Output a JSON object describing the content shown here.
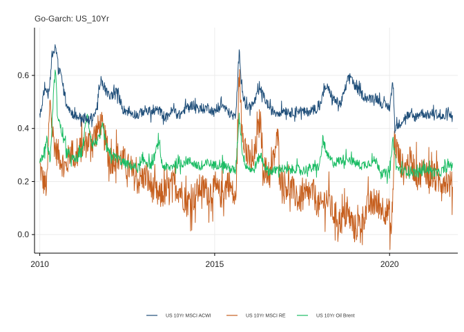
{
  "chart_data": {
    "type": "line",
    "title": "Go-Garch: US_10Yr",
    "xlabel": "",
    "ylabel": "",
    "xlim": [
      2009.85,
      2021.95
    ],
    "ylim": [
      -0.07,
      0.78
    ],
    "x_ticks": [
      2010,
      2015,
      2020
    ],
    "y_ticks": [
      0.0,
      0.2,
      0.4,
      0.6
    ],
    "x_tick_labels": [
      "2010",
      "2015",
      "2020"
    ],
    "y_tick_labels": [
      "0.0",
      "0.2",
      "0.4",
      "0.6"
    ],
    "grid": true,
    "legend_position": "bottom",
    "series": [
      {
        "name": "US_10Yr_MSCI_ACWI",
        "legend_label": "US  10Yr MSCI  ACWI",
        "color": "#1f4e79",
        "points": [
          [
            2010.0,
            0.44
          ],
          [
            2010.15,
            0.56
          ],
          [
            2010.25,
            0.52
          ],
          [
            2010.35,
            0.68
          ],
          [
            2010.45,
            0.71
          ],
          [
            2010.55,
            0.62
          ],
          [
            2010.65,
            0.58
          ],
          [
            2010.75,
            0.5
          ],
          [
            2010.9,
            0.46
          ],
          [
            2011.0,
            0.45
          ],
          [
            2011.2,
            0.44
          ],
          [
            2011.4,
            0.43
          ],
          [
            2011.6,
            0.46
          ],
          [
            2011.75,
            0.58
          ],
          [
            2011.85,
            0.55
          ],
          [
            2012.0,
            0.52
          ],
          [
            2012.2,
            0.54
          ],
          [
            2012.4,
            0.47
          ],
          [
            2012.6,
            0.46
          ],
          [
            2012.8,
            0.45
          ],
          [
            2013.0,
            0.47
          ],
          [
            2013.2,
            0.46
          ],
          [
            2013.4,
            0.47
          ],
          [
            2013.6,
            0.44
          ],
          [
            2013.8,
            0.47
          ],
          [
            2014.0,
            0.45
          ],
          [
            2014.2,
            0.48
          ],
          [
            2014.4,
            0.49
          ],
          [
            2014.6,
            0.47
          ],
          [
            2014.8,
            0.48
          ],
          [
            2015.0,
            0.46
          ],
          [
            2015.2,
            0.49
          ],
          [
            2015.4,
            0.46
          ],
          [
            2015.6,
            0.44
          ],
          [
            2015.7,
            0.69
          ],
          [
            2015.8,
            0.54
          ],
          [
            2015.9,
            0.48
          ],
          [
            2016.1,
            0.49
          ],
          [
            2016.3,
            0.55
          ],
          [
            2016.4,
            0.52
          ],
          [
            2016.6,
            0.47
          ],
          [
            2016.8,
            0.46
          ],
          [
            2017.0,
            0.47
          ],
          [
            2017.2,
            0.46
          ],
          [
            2017.4,
            0.47
          ],
          [
            2017.6,
            0.46
          ],
          [
            2017.8,
            0.47
          ],
          [
            2018.0,
            0.48
          ],
          [
            2018.1,
            0.53
          ],
          [
            2018.2,
            0.56
          ],
          [
            2018.4,
            0.51
          ],
          [
            2018.6,
            0.49
          ],
          [
            2018.8,
            0.58
          ],
          [
            2018.9,
            0.6
          ],
          [
            2019.0,
            0.56
          ],
          [
            2019.2,
            0.53
          ],
          [
            2019.4,
            0.51
          ],
          [
            2019.6,
            0.52
          ],
          [
            2019.8,
            0.49
          ],
          [
            2020.0,
            0.48
          ],
          [
            2020.1,
            0.58
          ],
          [
            2020.15,
            0.4
          ],
          [
            2020.3,
            0.42
          ],
          [
            2020.5,
            0.45
          ],
          [
            2020.7,
            0.44
          ],
          [
            2020.9,
            0.46
          ],
          [
            2021.1,
            0.45
          ],
          [
            2021.3,
            0.46
          ],
          [
            2021.5,
            0.44
          ],
          [
            2021.7,
            0.45
          ],
          [
            2021.8,
            0.45
          ]
        ]
      },
      {
        "name": "US_10Yr_MSCI_RE",
        "legend_label": "US  10Yr MSCI  RE",
        "color": "#c65f1e",
        "points": [
          [
            2010.0,
            0.26
          ],
          [
            2010.1,
            0.2
          ],
          [
            2010.2,
            0.18
          ],
          [
            2010.3,
            0.52
          ],
          [
            2010.35,
            0.4
          ],
          [
            2010.45,
            0.32
          ],
          [
            2010.55,
            0.3
          ],
          [
            2010.65,
            0.27
          ],
          [
            2010.75,
            0.25
          ],
          [
            2010.9,
            0.33
          ],
          [
            2011.0,
            0.28
          ],
          [
            2011.2,
            0.33
          ],
          [
            2011.4,
            0.35
          ],
          [
            2011.6,
            0.38
          ],
          [
            2011.75,
            0.42
          ],
          [
            2011.9,
            0.34
          ],
          [
            2012.0,
            0.27
          ],
          [
            2012.2,
            0.3
          ],
          [
            2012.4,
            0.28
          ],
          [
            2012.6,
            0.24
          ],
          [
            2012.8,
            0.2
          ],
          [
            2013.0,
            0.22
          ],
          [
            2013.2,
            0.18
          ],
          [
            2013.4,
            0.14
          ],
          [
            2013.6,
            0.16
          ],
          [
            2013.8,
            0.19
          ],
          [
            2014.0,
            0.17
          ],
          [
            2014.2,
            0.12
          ],
          [
            2014.4,
            0.14
          ],
          [
            2014.6,
            0.18
          ],
          [
            2014.8,
            0.16
          ],
          [
            2015.0,
            0.17
          ],
          [
            2015.2,
            0.15
          ],
          [
            2015.4,
            0.2
          ],
          [
            2015.6,
            0.12
          ],
          [
            2015.7,
            0.6
          ],
          [
            2015.8,
            0.4
          ],
          [
            2015.9,
            0.3
          ],
          [
            2016.1,
            0.26
          ],
          [
            2016.3,
            0.44
          ],
          [
            2016.4,
            0.25
          ],
          [
            2016.6,
            0.22
          ],
          [
            2016.8,
            0.37
          ],
          [
            2016.9,
            0.21
          ],
          [
            2017.0,
            0.19
          ],
          [
            2017.2,
            0.17
          ],
          [
            2017.4,
            0.13
          ],
          [
            2017.6,
            0.14
          ],
          [
            2017.8,
            0.16
          ],
          [
            2018.0,
            0.1
          ],
          [
            2018.2,
            0.14
          ],
          [
            2018.4,
            0.08
          ],
          [
            2018.6,
            0.05
          ],
          [
            2018.8,
            0.08
          ],
          [
            2019.0,
            0.02
          ],
          [
            2019.2,
            0.05
          ],
          [
            2019.4,
            0.11
          ],
          [
            2019.6,
            0.12
          ],
          [
            2019.8,
            0.1
          ],
          [
            2020.0,
            0.08
          ],
          [
            2020.05,
            0.0
          ],
          [
            2020.15,
            0.35
          ],
          [
            2020.25,
            0.3
          ],
          [
            2020.4,
            0.24
          ],
          [
            2020.6,
            0.28
          ],
          [
            2020.8,
            0.22
          ],
          [
            2021.0,
            0.25
          ],
          [
            2021.2,
            0.22
          ],
          [
            2021.4,
            0.2
          ],
          [
            2021.6,
            0.21
          ],
          [
            2021.8,
            0.18
          ]
        ]
      },
      {
        "name": "US_10Yr_Oil_Brent",
        "legend_label": "US  10Yr Oil  Brent",
        "color": "#1abc63",
        "points": [
          [
            2010.0,
            0.28
          ],
          [
            2010.1,
            0.3
          ],
          [
            2010.2,
            0.36
          ],
          [
            2010.3,
            0.28
          ],
          [
            2010.4,
            0.55
          ],
          [
            2010.45,
            0.63
          ],
          [
            2010.5,
            0.46
          ],
          [
            2010.6,
            0.4
          ],
          [
            2010.7,
            0.35
          ],
          [
            2010.8,
            0.3
          ],
          [
            2010.9,
            0.29
          ],
          [
            2011.0,
            0.28
          ],
          [
            2011.2,
            0.31
          ],
          [
            2011.35,
            0.45
          ],
          [
            2011.5,
            0.34
          ],
          [
            2011.7,
            0.36
          ],
          [
            2011.8,
            0.41
          ],
          [
            2011.9,
            0.33
          ],
          [
            2012.0,
            0.3
          ],
          [
            2012.2,
            0.29
          ],
          [
            2012.4,
            0.27
          ],
          [
            2012.6,
            0.26
          ],
          [
            2012.8,
            0.25
          ],
          [
            2013.0,
            0.28
          ],
          [
            2013.2,
            0.26
          ],
          [
            2013.4,
            0.35
          ],
          [
            2013.5,
            0.26
          ],
          [
            2013.7,
            0.25
          ],
          [
            2013.9,
            0.27
          ],
          [
            2014.0,
            0.26
          ],
          [
            2014.2,
            0.28
          ],
          [
            2014.4,
            0.27
          ],
          [
            2014.6,
            0.25
          ],
          [
            2014.8,
            0.27
          ],
          [
            2015.0,
            0.26
          ],
          [
            2015.2,
            0.27
          ],
          [
            2015.4,
            0.25
          ],
          [
            2015.6,
            0.24
          ],
          [
            2015.7,
            0.45
          ],
          [
            2015.8,
            0.3
          ],
          [
            2015.9,
            0.26
          ],
          [
            2016.1,
            0.24
          ],
          [
            2016.3,
            0.3
          ],
          [
            2016.5,
            0.24
          ],
          [
            2016.7,
            0.24
          ],
          [
            2016.9,
            0.25
          ],
          [
            2017.1,
            0.24
          ],
          [
            2017.3,
            0.25
          ],
          [
            2017.5,
            0.24
          ],
          [
            2017.7,
            0.25
          ],
          [
            2017.9,
            0.25
          ],
          [
            2018.0,
            0.26
          ],
          [
            2018.1,
            0.36
          ],
          [
            2018.2,
            0.3
          ],
          [
            2018.4,
            0.27
          ],
          [
            2018.6,
            0.28
          ],
          [
            2018.8,
            0.29
          ],
          [
            2019.0,
            0.27
          ],
          [
            2019.2,
            0.26
          ],
          [
            2019.4,
            0.27
          ],
          [
            2019.6,
            0.28
          ],
          [
            2019.8,
            0.23
          ],
          [
            2020.0,
            0.23
          ],
          [
            2020.1,
            0.36
          ],
          [
            2020.2,
            0.25
          ],
          [
            2020.4,
            0.24
          ],
          [
            2020.6,
            0.24
          ],
          [
            2020.8,
            0.23
          ],
          [
            2021.0,
            0.25
          ],
          [
            2021.2,
            0.24
          ],
          [
            2021.4,
            0.23
          ],
          [
            2021.6,
            0.25
          ],
          [
            2021.8,
            0.27
          ]
        ]
      }
    ]
  }
}
